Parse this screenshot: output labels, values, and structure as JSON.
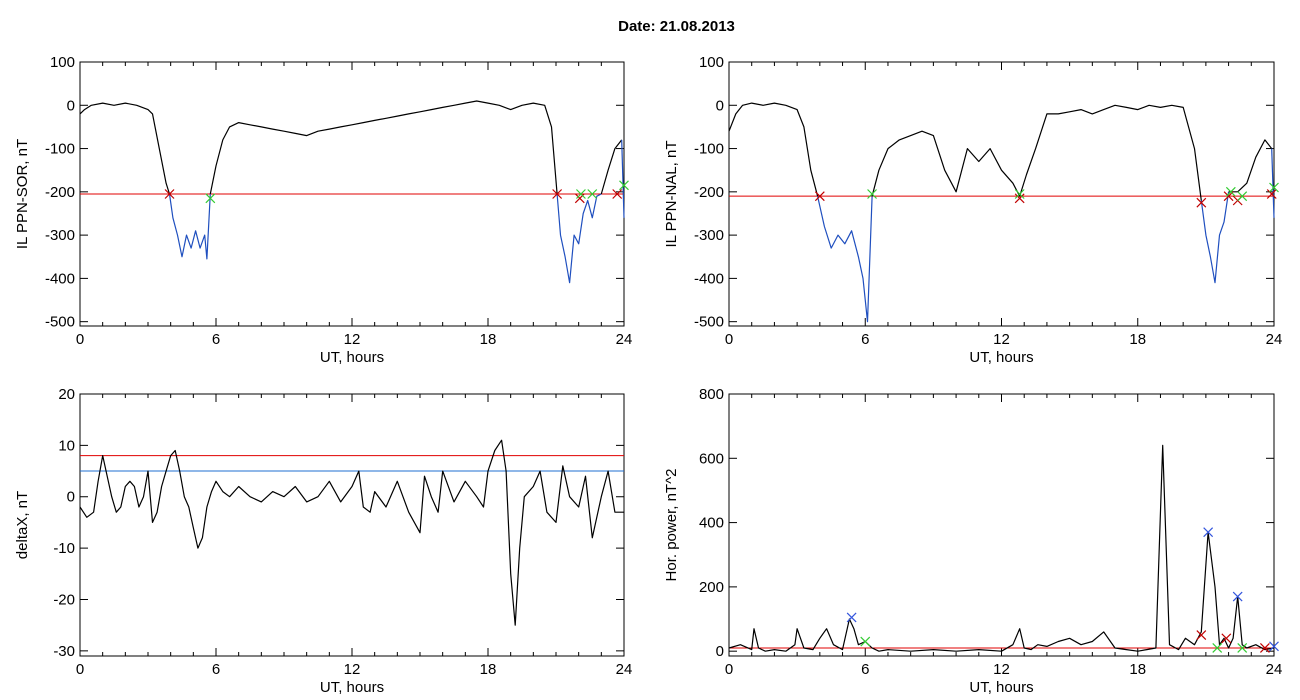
{
  "title": "Date:  21.08.2013",
  "colors": {
    "axis": "#000000",
    "data": "#000000",
    "substorm": "#1f4fbf",
    "threshold_red": "#e00000",
    "threshold_blue": "#1f6fd0",
    "onset": "#c00000",
    "end": "#33cc33",
    "peak": "#3355dd"
  },
  "chart_data": [
    {
      "id": "il-ppn-sor",
      "type": "line",
      "xlabel": "UT, hours",
      "ylabel": "IL PPN-SOR, nT",
      "xlim": [
        0,
        24
      ],
      "ylim": [
        -510,
        100
      ],
      "xticks": [
        0,
        6,
        12,
        18,
        24
      ],
      "yticks": [
        100,
        0,
        -100,
        -200,
        -300,
        -400,
        -500
      ],
      "threshold": {
        "value": -205,
        "color": "red"
      },
      "series": [
        {
          "color": "black",
          "x": [
            0,
            0.2,
            0.5,
            1,
            1.5,
            2,
            2.5,
            3,
            3.2,
            3.5,
            3.8,
            3.95
          ],
          "y": [
            -20,
            -10,
            0,
            5,
            0,
            5,
            0,
            -10,
            -20,
            -100,
            -180,
            -205
          ]
        },
        {
          "color": "blue",
          "x": [
            3.95,
            4.1,
            4.3,
            4.5,
            4.7,
            4.9,
            5.1,
            5.3,
            5.5,
            5.6,
            5.75
          ],
          "y": [
            -205,
            -260,
            -300,
            -350,
            -300,
            -330,
            -290,
            -330,
            -300,
            -355,
            -205
          ]
        },
        {
          "color": "black",
          "x": [
            5.75,
            6,
            6.3,
            6.6,
            7,
            7.5,
            8,
            8.5,
            9,
            9.5,
            10,
            10.5,
            11,
            11.5,
            12,
            12.5,
            13,
            13.5,
            14,
            14.5,
            15,
            15.5,
            16,
            16.5,
            17,
            17.5,
            18,
            18.5,
            19,
            19.5,
            20,
            20.5,
            20.8,
            21.05
          ],
          "y": [
            -205,
            -140,
            -80,
            -50,
            -40,
            -45,
            -50,
            -55,
            -60,
            -65,
            -70,
            -60,
            -55,
            -50,
            -45,
            -40,
            -35,
            -30,
            -25,
            -20,
            -15,
            -10,
            -5,
            0,
            5,
            10,
            5,
            0,
            -10,
            0,
            5,
            0,
            -50,
            -205
          ]
        },
        {
          "color": "blue",
          "x": [
            21.05,
            21.2,
            21.4,
            21.6,
            21.8,
            22,
            22.2,
            22.4,
            22.6,
            22.8,
            23
          ],
          "y": [
            -205,
            -300,
            -350,
            -410,
            -300,
            -320,
            -250,
            -220,
            -260,
            -210,
            -205
          ]
        },
        {
          "color": "black",
          "x": [
            23,
            23.3,
            23.6,
            23.9
          ],
          "y": [
            -205,
            -150,
            -100,
            -80
          ]
        },
        {
          "color": "blue",
          "x": [
            23.9,
            24
          ],
          "y": [
            -80,
            -260
          ]
        }
      ],
      "onsets": [
        {
          "x": 3.95,
          "y": -205
        },
        {
          "x": 21.05,
          "y": -205
        },
        {
          "x": 22.05,
          "y": -215
        },
        {
          "x": 23.7,
          "y": -205
        }
      ],
      "ends": [
        {
          "x": 5.75,
          "y": -215
        },
        {
          "x": 22.1,
          "y": -205
        },
        {
          "x": 22.6,
          "y": -205
        },
        {
          "x": 24,
          "y": -185
        }
      ]
    },
    {
      "id": "il-ppn-nal",
      "type": "line",
      "xlabel": "UT, hours",
      "ylabel": "IL PPN-NAL, nT",
      "xlim": [
        0,
        24
      ],
      "ylim": [
        -510,
        100
      ],
      "xticks": [
        0,
        6,
        12,
        18,
        24
      ],
      "yticks": [
        100,
        0,
        -100,
        -200,
        -300,
        -400,
        -500
      ],
      "threshold": {
        "value": -210,
        "color": "red"
      },
      "series": [
        {
          "color": "black",
          "x": [
            0,
            0.3,
            0.6,
            1,
            1.5,
            2,
            2.5,
            3,
            3.3,
            3.6,
            3.9
          ],
          "y": [
            -60,
            -20,
            0,
            5,
            0,
            5,
            0,
            -10,
            -50,
            -150,
            -210
          ]
        },
        {
          "color": "blue",
          "x": [
            3.9,
            4.2,
            4.5,
            4.8,
            5.1,
            5.4,
            5.7,
            5.9,
            6.1,
            6.3
          ],
          "y": [
            -210,
            -280,
            -330,
            -300,
            -320,
            -290,
            -350,
            -400,
            -500,
            -210
          ]
        },
        {
          "color": "black",
          "x": [
            6.3,
            6.6,
            7,
            7.5,
            8,
            8.5,
            9,
            9.5,
            10,
            10.5,
            11,
            11.5,
            12,
            12.5,
            12.8,
            13.1,
            13.5,
            14,
            14.5,
            15,
            15.5,
            16,
            16.5,
            17,
            17.5,
            18,
            18.5,
            19,
            19.5,
            20,
            20.5,
            20.8
          ],
          "y": [
            -210,
            -150,
            -100,
            -80,
            -70,
            -60,
            -70,
            -150,
            -200,
            -100,
            -130,
            -100,
            -150,
            -180,
            -210,
            -160,
            -100,
            -20,
            -20,
            -15,
            -10,
            -20,
            -10,
            0,
            -5,
            -10,
            0,
            -5,
            0,
            -5,
            -100,
            -220
          ]
        },
        {
          "color": "blue",
          "x": [
            20.8,
            21,
            21.2,
            21.4,
            21.6,
            21.8,
            22
          ],
          "y": [
            -220,
            -300,
            -350,
            -410,
            -300,
            -270,
            -200
          ]
        },
        {
          "color": "black",
          "x": [
            22,
            22.4,
            22.8,
            23.2,
            23.6,
            23.9
          ],
          "y": [
            -200,
            -200,
            -180,
            -120,
            -80,
            -100
          ]
        },
        {
          "color": "blue",
          "x": [
            23.9,
            24
          ],
          "y": [
            -100,
            -260
          ]
        }
      ],
      "onsets": [
        {
          "x": 4,
          "y": -210
        },
        {
          "x": 12.8,
          "y": -215
        },
        {
          "x": 20.8,
          "y": -225
        },
        {
          "x": 22,
          "y": -210
        },
        {
          "x": 22.4,
          "y": -220
        },
        {
          "x": 23.9,
          "y": -205
        }
      ],
      "ends": [
        {
          "x": 6.3,
          "y": -205
        },
        {
          "x": 12.8,
          "y": -205
        },
        {
          "x": 22.1,
          "y": -200
        },
        {
          "x": 22.6,
          "y": -210
        },
        {
          "x": 24,
          "y": -190
        }
      ]
    },
    {
      "id": "deltax",
      "type": "line",
      "xlabel": "UT, hours",
      "ylabel": "deltaX, nT",
      "xlim": [
        0,
        24
      ],
      "ylim": [
        -31,
        20
      ],
      "xticks": [
        0,
        6,
        12,
        18,
        24
      ],
      "yticks": [
        20,
        10,
        0,
        -10,
        -20,
        -30
      ],
      "thresholds": [
        {
          "value": 8,
          "color": "red"
        },
        {
          "value": 5,
          "color": "blue"
        }
      ],
      "series": [
        {
          "color": "black",
          "x": [
            0,
            0.3,
            0.6,
            0.8,
            1,
            1.2,
            1.4,
            1.6,
            1.8,
            2,
            2.2,
            2.4,
            2.6,
            2.8,
            3,
            3.2,
            3.4,
            3.6,
            3.8,
            4,
            4.2,
            4.4,
            4.6,
            4.8,
            5,
            5.2,
            5.4,
            5.6,
            5.8,
            6,
            6.3,
            6.6,
            7,
            7.5,
            8,
            8.5,
            9,
            9.5,
            10,
            10.5,
            11,
            11.5,
            12,
            12.3,
            12.5,
            12.8,
            13,
            13.5,
            14,
            14.5,
            15,
            15.2,
            15.5,
            15.8,
            16,
            16.5,
            17,
            17.5,
            17.8,
            18,
            18.3,
            18.6,
            18.8,
            19,
            19.2,
            19.4,
            19.6,
            20,
            20.3,
            20.6,
            21,
            21.3,
            21.6,
            22,
            22.3,
            22.6,
            23,
            23.3,
            23.6,
            24
          ],
          "y": [
            -2,
            -4,
            -3,
            3,
            8,
            4,
            0,
            -3,
            -2,
            2,
            3,
            2,
            -2,
            0,
            5,
            -5,
            -3,
            2,
            5,
            8,
            9,
            5,
            0,
            -2,
            -6,
            -10,
            -8,
            -2,
            1,
            3,
            1,
            0,
            2,
            0,
            -1,
            1,
            0,
            2,
            -1,
            0,
            3,
            -1,
            2,
            5,
            -2,
            -3,
            1,
            -2,
            3,
            -3,
            -7,
            4,
            0,
            -3,
            5,
            -1,
            3,
            0,
            -2,
            5,
            9,
            11,
            5,
            -15,
            -25,
            -10,
            0,
            2,
            5,
            -3,
            -5,
            6,
            0,
            -2,
            4,
            -8,
            0,
            5,
            -3,
            -3
          ]
        }
      ]
    },
    {
      "id": "hor-power",
      "type": "line",
      "xlabel": "UT, hours",
      "ylabel": "Hor. power, nT^2",
      "xlim": [
        0,
        24
      ],
      "ylim": [
        -15,
        800
      ],
      "xticks": [
        0,
        6,
        12,
        18,
        24
      ],
      "yticks": [
        800,
        600,
        400,
        200,
        0
      ],
      "threshold": {
        "value": 10,
        "color": "red"
      },
      "series": [
        {
          "color": "black",
          "x": [
            0,
            0.5,
            1,
            1.1,
            1.3,
            1.6,
            2,
            2.5,
            2.9,
            3,
            3.3,
            3.7,
            4,
            4.3,
            4.6,
            5,
            5.3,
            5.5,
            5.7,
            6,
            6.3,
            6.6,
            7,
            8,
            9,
            10,
            11,
            12,
            12.5,
            12.8,
            13,
            13.3,
            13.6,
            14,
            14.5,
            15,
            15.5,
            16,
            16.5,
            17,
            17.5,
            18,
            18.4,
            18.8,
            19.1,
            19.4,
            19.8,
            20.1,
            20.5,
            20.8,
            21.1,
            21.4,
            21.6,
            21.8,
            22,
            22.2,
            22.4,
            22.6,
            22.8,
            23.2,
            23.6,
            24
          ],
          "y": [
            10,
            20,
            5,
            70,
            10,
            0,
            5,
            0,
            20,
            70,
            10,
            5,
            40,
            70,
            20,
            5,
            100,
            70,
            20,
            30,
            10,
            0,
            5,
            0,
            5,
            0,
            5,
            0,
            20,
            70,
            10,
            5,
            20,
            15,
            30,
            40,
            20,
            30,
            60,
            10,
            5,
            0,
            5,
            10,
            640,
            20,
            5,
            40,
            20,
            60,
            370,
            200,
            20,
            40,
            10,
            40,
            170,
            20,
            10,
            20,
            5,
            10
          ]
        }
      ],
      "onsets": [
        {
          "x": 20.8,
          "y": 50
        },
        {
          "x": 21.9,
          "y": 40
        },
        {
          "x": 23.6,
          "y": 10
        }
      ],
      "ends": [
        {
          "x": 6,
          "y": 30
        },
        {
          "x": 21.5,
          "y": 10
        },
        {
          "x": 22.6,
          "y": 10
        }
      ],
      "peaks": [
        {
          "x": 5.4,
          "y": 105
        },
        {
          "x": 21.1,
          "y": 370
        },
        {
          "x": 22.4,
          "y": 170
        },
        {
          "x": 24,
          "y": 15
        }
      ]
    }
  ]
}
